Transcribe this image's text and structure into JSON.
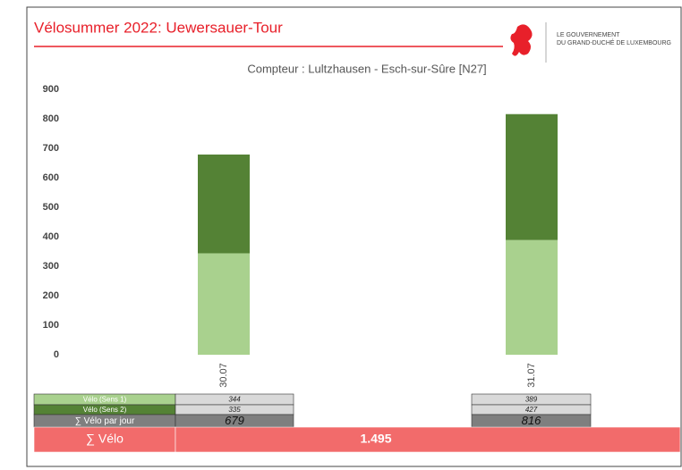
{
  "header": {
    "logo_line1": "LE GOUVERNEMENT",
    "logo_line2": "DU GRAND-DUCHÉ DE LUXEMBOURG"
  },
  "chart_data": {
    "type": "stacked_bar",
    "title": "Vélosummer 2022: Uewersauer-Tour",
    "subtitle": "Compteur : Lultzhausen - Esch-sur-Sûre [N27]",
    "categories": [
      "30.07",
      "31.07"
    ],
    "series": [
      {
        "name": "Vélo (Sens 1)",
        "color": "#a9d18e",
        "values": [
          344,
          389
        ]
      },
      {
        "name": "Vélo (Sens 2)",
        "color": "#548235",
        "values": [
          335,
          427
        ]
      }
    ],
    "totals_name": "∑ Vélo par jour",
    "totals": [
      679,
      816
    ],
    "grand_total": {
      "name": "∑ Vélo",
      "value": 1495,
      "label": "1.495"
    },
    "ylim": [
      0,
      900
    ],
    "yticks": [
      0,
      100,
      200,
      300,
      400,
      500,
      600,
      700,
      800,
      900
    ],
    "grid": false
  }
}
